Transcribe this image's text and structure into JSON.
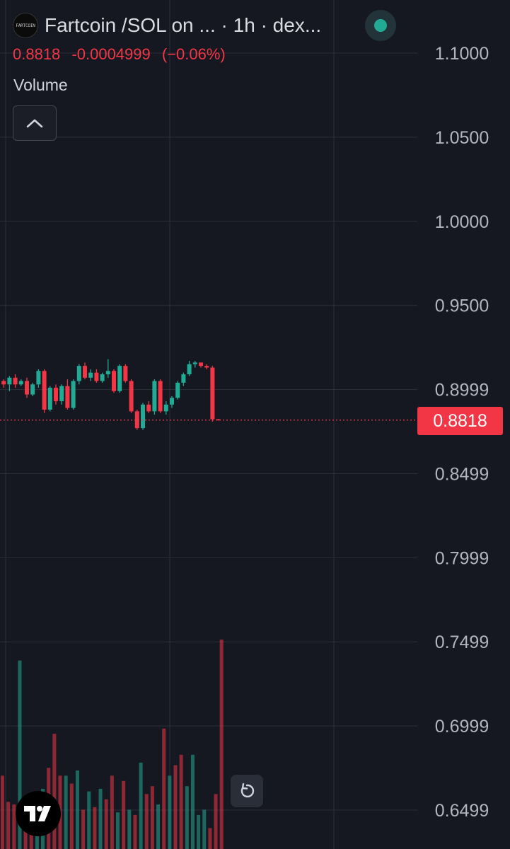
{
  "header": {
    "logo_text": "FARTCOIN",
    "pair_title": "Fartcoin /SOL on ...",
    "interval": "1h",
    "source": "dex...",
    "status_color": "#22ab94"
  },
  "ohlc": {
    "price": "0.8818",
    "change": "-0.0004999",
    "change_pct": "(−0.06%)",
    "color": "#f23645"
  },
  "indicator": {
    "volume_label": "Volume"
  },
  "icons": {
    "collapse": "chevron-up-icon",
    "reset": "reset-icon",
    "brand": "tradingview-logo-icon"
  },
  "colors": {
    "up": "#22ab94",
    "down": "#f23645",
    "background": "#161821",
    "grid": "#2a2e39"
  },
  "chart_data": {
    "type": "candlestick",
    "title": "Fartcoin /SOL on ...",
    "price_axis": {
      "tick_labels": [
        "1.1000",
        "1.0500",
        "1.0000",
        "0.9500",
        "0.8999",
        "0.8499",
        "0.7999",
        "0.7499",
        "0.6999",
        "0.6499"
      ],
      "range": [
        0.6399,
        1.11
      ]
    },
    "last_price_label": "0.8818",
    "grid": true,
    "candles": [
      {
        "o": 0.902,
        "h": 0.91,
        "l": 0.9,
        "c": 0.905
      },
      {
        "o": 0.905,
        "h": 0.906,
        "l": 0.901,
        "c": 0.903
      },
      {
        "o": 0.903,
        "h": 0.908,
        "l": 0.899,
        "c": 0.907
      },
      {
        "o": 0.907,
        "h": 0.909,
        "l": 0.901,
        "c": 0.903
      },
      {
        "o": 0.903,
        "h": 0.906,
        "l": 0.902,
        "c": 0.905
      },
      {
        "o": 0.905,
        "h": 0.907,
        "l": 0.895,
        "c": 0.897
      },
      {
        "o": 0.897,
        "h": 0.904,
        "l": 0.896,
        "c": 0.903
      },
      {
        "o": 0.903,
        "h": 0.912,
        "l": 0.901,
        "c": 0.911
      },
      {
        "o": 0.911,
        "h": 0.912,
        "l": 0.886,
        "c": 0.888
      },
      {
        "o": 0.888,
        "h": 0.902,
        "l": 0.887,
        "c": 0.901
      },
      {
        "o": 0.901,
        "h": 0.903,
        "l": 0.891,
        "c": 0.893
      },
      {
        "o": 0.893,
        "h": 0.903,
        "l": 0.891,
        "c": 0.902
      },
      {
        "o": 0.902,
        "h": 0.906,
        "l": 0.888,
        "c": 0.889
      },
      {
        "o": 0.889,
        "h": 0.906,
        "l": 0.888,
        "c": 0.905
      },
      {
        "o": 0.905,
        "h": 0.915,
        "l": 0.903,
        "c": 0.914
      },
      {
        "o": 0.914,
        "h": 0.916,
        "l": 0.906,
        "c": 0.907
      },
      {
        "o": 0.907,
        "h": 0.912,
        "l": 0.905,
        "c": 0.91
      },
      {
        "o": 0.91,
        "h": 0.912,
        "l": 0.904,
        "c": 0.905
      },
      {
        "o": 0.905,
        "h": 0.91,
        "l": 0.904,
        "c": 0.909
      },
      {
        "o": 0.909,
        "h": 0.918,
        "l": 0.907,
        "c": 0.911
      },
      {
        "o": 0.911,
        "h": 0.912,
        "l": 0.898,
        "c": 0.899
      },
      {
        "o": 0.899,
        "h": 0.915,
        "l": 0.898,
        "c": 0.914
      },
      {
        "o": 0.914,
        "h": 0.915,
        "l": 0.904,
        "c": 0.905
      },
      {
        "o": 0.905,
        "h": 0.906,
        "l": 0.886,
        "c": 0.887
      },
      {
        "o": 0.887,
        "h": 0.888,
        "l": 0.876,
        "c": 0.877
      },
      {
        "o": 0.877,
        "h": 0.892,
        "l": 0.876,
        "c": 0.891
      },
      {
        "o": 0.891,
        "h": 0.893,
        "l": 0.886,
        "c": 0.887
      },
      {
        "o": 0.887,
        "h": 0.906,
        "l": 0.885,
        "c": 0.905
      },
      {
        "o": 0.905,
        "h": 0.906,
        "l": 0.886,
        "c": 0.887
      },
      {
        "o": 0.887,
        "h": 0.893,
        "l": 0.885,
        "c": 0.891
      },
      {
        "o": 0.891,
        "h": 0.896,
        "l": 0.889,
        "c": 0.895
      },
      {
        "o": 0.895,
        "h": 0.905,
        "l": 0.894,
        "c": 0.904
      },
      {
        "o": 0.904,
        "h": 0.91,
        "l": 0.902,
        "c": 0.909
      },
      {
        "o": 0.909,
        "h": 0.917,
        "l": 0.908,
        "c": 0.915
      },
      {
        "o": 0.915,
        "h": 0.917,
        "l": 0.913,
        "c": 0.916
      },
      {
        "o": 0.916,
        "h": 0.916,
        "l": 0.913,
        "c": 0.914
      },
      {
        "o": 0.914,
        "h": 0.915,
        "l": 0.912,
        "c": 0.913
      },
      {
        "o": 0.913,
        "h": 0.914,
        "l": 0.8808,
        "c": 0.8823
      },
      {
        "o": 0.8823,
        "h": 0.8824,
        "l": 0.8815,
        "c": 0.8818
      }
    ],
    "volume": [
      {
        "v": 28,
        "up": false
      },
      {
        "v": 18,
        "up": false
      },
      {
        "v": 17,
        "up": false
      },
      {
        "v": 72,
        "up": true
      },
      {
        "v": 18,
        "up": false
      },
      {
        "v": 15,
        "up": false
      },
      {
        "v": 17,
        "up": true
      },
      {
        "v": 23,
        "up": true
      },
      {
        "v": 31,
        "up": false
      },
      {
        "v": 44,
        "up": false
      },
      {
        "v": 28,
        "up": false
      },
      {
        "v": 28,
        "up": true
      },
      {
        "v": 25,
        "up": false
      },
      {
        "v": 30,
        "up": true
      },
      {
        "v": 15,
        "up": false
      },
      {
        "v": 22,
        "up": true
      },
      {
        "v": 16,
        "up": false
      },
      {
        "v": 23,
        "up": true
      },
      {
        "v": 19,
        "up": false
      },
      {
        "v": 28,
        "up": false
      },
      {
        "v": 14,
        "up": true
      },
      {
        "v": 26,
        "up": false
      },
      {
        "v": 15,
        "up": true
      },
      {
        "v": 13,
        "up": false
      },
      {
        "v": 33,
        "up": true
      },
      {
        "v": 21,
        "up": false
      },
      {
        "v": 24,
        "up": false
      },
      {
        "v": 17,
        "up": true
      },
      {
        "v": 46,
        "up": false
      },
      {
        "v": 28,
        "up": true
      },
      {
        "v": 32,
        "up": false
      },
      {
        "v": 36,
        "up": false
      },
      {
        "v": 24,
        "up": true
      },
      {
        "v": 36,
        "up": true
      },
      {
        "v": 13,
        "up": true
      },
      {
        "v": 15,
        "up": true
      },
      {
        "v": 8,
        "up": false
      },
      {
        "v": 21,
        "up": false
      },
      {
        "v": 80,
        "up": false
      }
    ]
  }
}
